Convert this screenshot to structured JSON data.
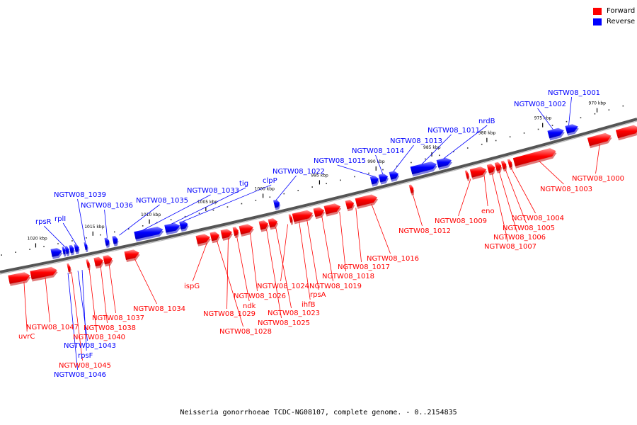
{
  "legend": [
    {
      "label": "Forward",
      "color": "#ff0000"
    },
    {
      "label": "Reverse",
      "color": "#0000ff"
    }
  ],
  "caption": "Neisseria gonorrhoeae TCDC-NG08107, complete genome. - 0..2154835",
  "colors": {
    "forward": "#ff0000",
    "reverse": "#0000ff",
    "backbone": "#777777"
  },
  "ticks": [
    "970 kbp",
    "975 kbp",
    "980 kbp",
    "985 kbp",
    "990 kbp",
    "995 kbp",
    "1000 kbp",
    "1005 kbp",
    "1010 kbp",
    "1015 kbp",
    "1020 kbp"
  ],
  "reverse_genes": [
    "NGTW08_1001",
    "NGTW08_1002",
    "nrdB",
    "NGTW08_1011",
    "NGTW08_1013",
    "NGTW08_1014",
    "NGTW08_1015",
    "NGTW08_1022",
    "clpP",
    "tig",
    "NGTW08_1033",
    "NGTW08_1035",
    "NGTW08_1036",
    "NGTW08_1039",
    "rplI",
    "rpsR",
    "NGTW08_1043",
    "rpsF",
    "NGTW08_1046"
  ],
  "forward_genes": [
    "NGTW08_1000",
    "NGTW08_1003",
    "NGTW08_1004",
    "NGTW08_1005",
    "NGTW08_1006",
    "NGTW08_1007",
    "eno",
    "NGTW08_1009",
    "NGTW08_1012",
    "NGTW08_1016",
    "NGTW08_1017",
    "NGTW08_1018",
    "NGTW08_1019",
    "rpsA",
    "ihfB",
    "NGTW08_1024",
    "NGTW08_1023",
    "NGTW08_1025",
    "NGTW08_1026",
    "ndk",
    "NGTW08_1029",
    "NGTW08_1028",
    "ispG",
    "NGTW08_1034",
    "NGTW08_1037",
    "NGTW08_1038",
    "NGTW08_1040",
    "NGTW08_1047",
    "uvrC",
    "NGTW08_1045"
  ]
}
